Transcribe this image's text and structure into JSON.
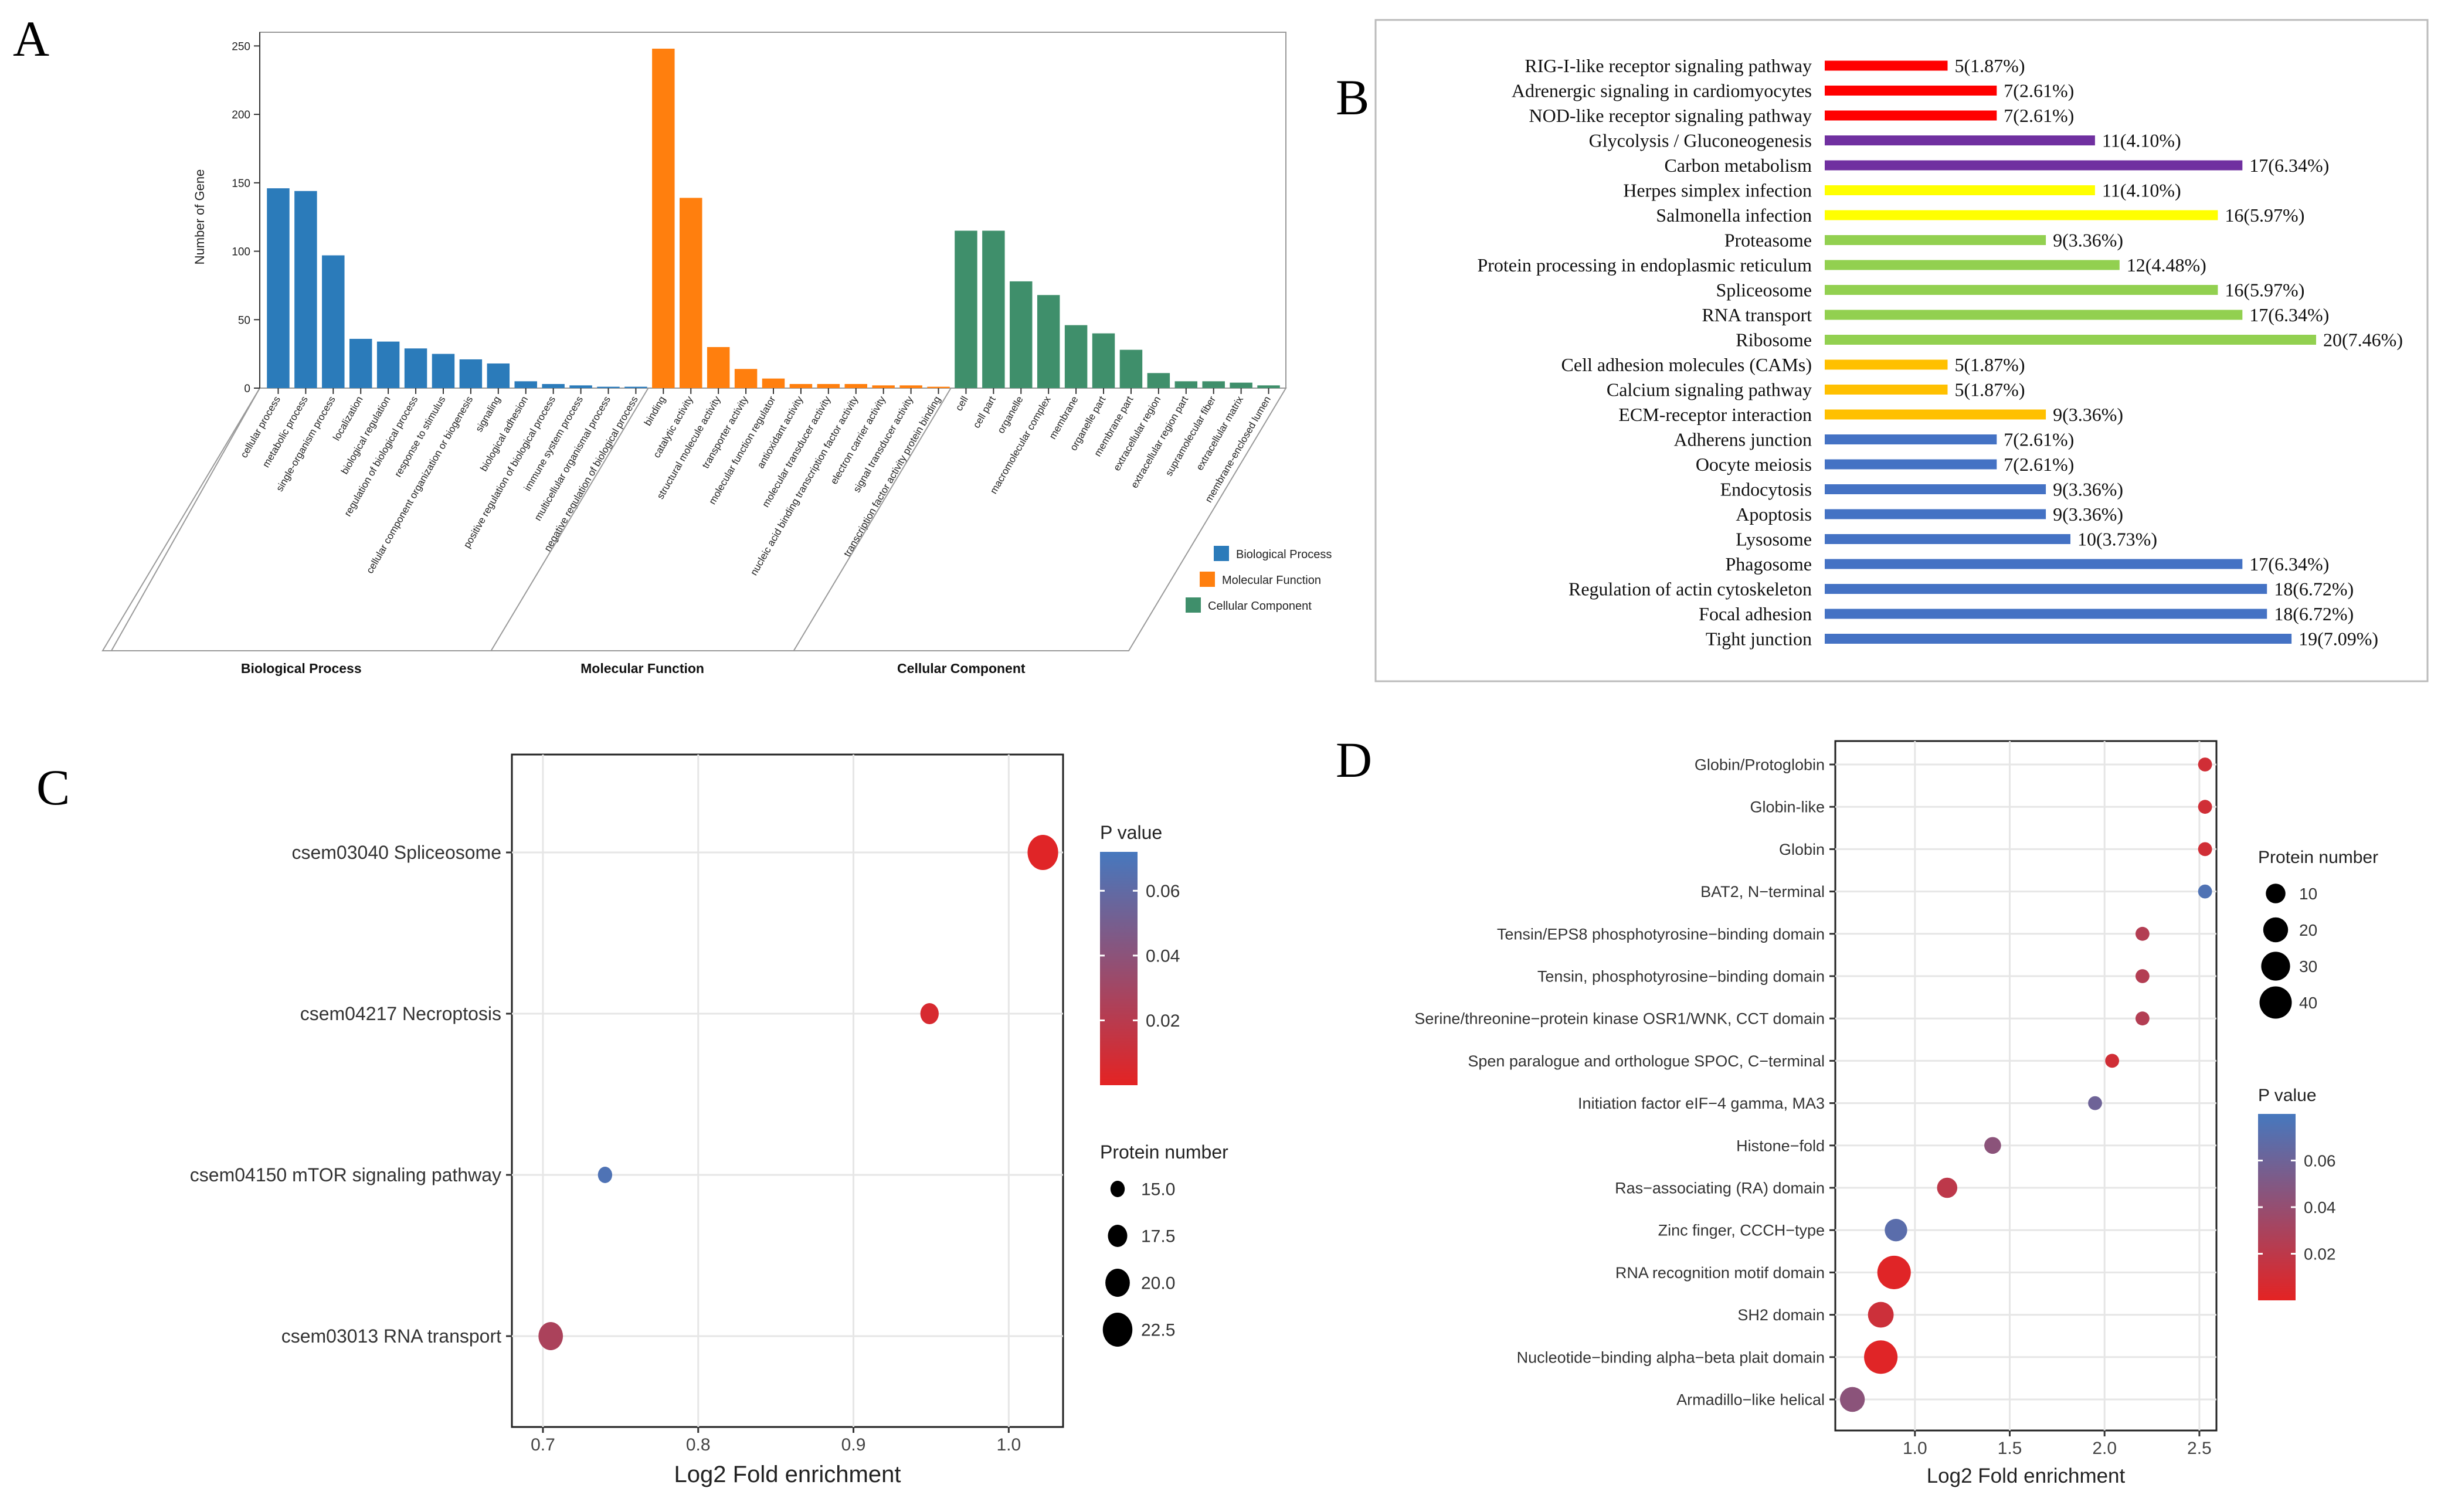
{
  "chart_data": [
    {
      "panel": "A",
      "type": "bar",
      "ylabel": "Number of Gene",
      "ylim": [
        0,
        260
      ],
      "yticks": [
        0,
        50,
        100,
        150,
        200,
        250
      ],
      "groups": [
        {
          "name": "Biological Process",
          "color": "#2b7bba",
          "legend": "Biological Process",
          "categories": [
            "cellular process",
            "metabolic process",
            "single-organism process",
            "localization",
            "biological regulation",
            "regulation of biological process",
            "response to stimulus",
            "cellular component organization or biogenesis",
            "signaling",
            "biological adhesion",
            "positive regulation of biological process",
            "immune system process",
            "multicellular organismal process",
            "negative regulation of biological process"
          ],
          "values": [
            146,
            144,
            97,
            36,
            34,
            29,
            25,
            21,
            18,
            5,
            3,
            2,
            1,
            1
          ]
        },
        {
          "name": "Molecular Function",
          "color": "#ff7f0e",
          "legend": "Molecular Function",
          "categories": [
            "binding",
            "catalytic activity",
            "structural molecule activity",
            "transporter activity",
            "molecular function regulator",
            "antioxidant activity",
            "molecular transducer activity",
            "nucleic acid binding transcription factor activity",
            "electron carrier activity",
            "signal transducer activity",
            "transcription factor activity protein binding"
          ],
          "values": [
            248,
            139,
            30,
            14,
            7,
            3,
            3,
            3,
            2,
            2,
            1
          ]
        },
        {
          "name": "Cellular Component",
          "color": "#3f8f6b",
          "legend": "Cellular Component",
          "categories": [
            "cell",
            "cell part",
            "organelle",
            "macromolecular complex",
            "membrane",
            "organelle part",
            "membrane part",
            "extracellular region",
            "extracellular region part",
            "supramolecular fiber",
            "extracellular matrix",
            "membrane-enclosed lumen"
          ],
          "values": [
            115,
            115,
            78,
            68,
            46,
            40,
            28,
            11,
            5,
            5,
            4,
            2
          ]
        }
      ]
    },
    {
      "panel": "B",
      "type": "bar",
      "orientation": "horizontal",
      "categories": [
        "RIG-I-like receptor signaling pathway",
        "Adrenergic signaling in cardiomyocytes",
        "NOD-like receptor signaling pathway",
        "Glycolysis / Gluconeogenesis",
        "Carbon metabolism",
        "Herpes simplex infection",
        "Salmonella infection",
        "Proteasome",
        "Protein processing in endoplasmic reticulum",
        "Spliceosome",
        "RNA transport",
        "Ribosome",
        "Cell adhesion molecules (CAMs)",
        "Calcium signaling pathway",
        "ECM-receptor interaction",
        "Adherens junction",
        "Oocyte meiosis",
        "Endocytosis",
        "Apoptosis",
        "Lysosome",
        "Phagosome",
        "Regulation of actin cytoskeleton",
        "Focal adhesion",
        "Tight junction"
      ],
      "values": [
        5,
        7,
        7,
        11,
        17,
        11,
        16,
        9,
        12,
        16,
        17,
        20,
        5,
        5,
        9,
        7,
        7,
        9,
        9,
        10,
        17,
        18,
        18,
        19
      ],
      "labels": [
        "5(1.87%)",
        "7(2.61%)",
        "7(2.61%)",
        "11(4.10%)",
        "17(6.34%)",
        "11(4.10%)",
        "16(5.97%)",
        "9(3.36%)",
        "12(4.48%)",
        "16(5.97%)",
        "17(6.34%)",
        "20(7.46%)",
        "5(1.87%)",
        "5(1.87%)",
        "9(3.36%)",
        "7(2.61%)",
        "7(2.61%)",
        "9(3.36%)",
        "9(3.36%)",
        "10(3.73%)",
        "17(6.34%)",
        "18(6.72%)",
        "18(6.72%)",
        "19(7.09%)"
      ],
      "colors": [
        "#ff0000",
        "#ff0000",
        "#ff0000",
        "#7030a0",
        "#7030a0",
        "#ffff00",
        "#ffff00",
        "#92d050",
        "#92d050",
        "#92d050",
        "#92d050",
        "#92d050",
        "#ffc000",
        "#ffc000",
        "#ffc000",
        "#4472c4",
        "#4472c4",
        "#4472c4",
        "#4472c4",
        "#4472c4",
        "#4472c4",
        "#4472c4",
        "#4472c4",
        "#4472c4"
      ],
      "xlim": [
        0,
        20
      ]
    },
    {
      "panel": "C",
      "type": "scatter",
      "xlabel": "Log2 Fold enrichment",
      "xlim": [
        0.68,
        1.035
      ],
      "xticks": [
        0.7,
        0.8,
        0.9,
        1.0
      ],
      "xtick_labels": [
        "0.7",
        "0.8",
        "0.9",
        "1.0"
      ],
      "categories": [
        "csem03040 Spliceosome",
        "csem04217 Necroptosis",
        "csem04150 mTOR signaling pathway",
        "csem03013 RNA transport"
      ],
      "x": [
        1.022,
        0.949,
        0.74,
        0.705
      ],
      "pvalue": [
        0.002,
        0.006,
        0.068,
        0.026
      ],
      "size": [
        23,
        17,
        15,
        20
      ],
      "color_legend": {
        "title": "P value",
        "range": [
          0,
          0.072
        ],
        "ticks": [
          0.06,
          0.04,
          0.02
        ],
        "tick_labels": [
          "0.06",
          "0.04",
          "0.02"
        ]
      },
      "size_legend": {
        "title": "Protein number",
        "values": [
          15.0,
          17.5,
          20.0,
          22.5
        ],
        "labels": [
          "15.0",
          "17.5",
          "20.0",
          "22.5"
        ]
      }
    },
    {
      "panel": "D",
      "type": "scatter",
      "xlabel": "Log2 Fold enrichment",
      "xlim": [
        0.58,
        2.59
      ],
      "xticks": [
        1.0,
        1.5,
        2.0,
        2.5
      ],
      "xtick_labels": [
        "1.0",
        "1.5",
        "2.0",
        "2.5"
      ],
      "categories": [
        "Globin/Protoglobin",
        "Globin-like",
        "Globin",
        "BAT2, N−terminal",
        "Tensin/EPS8 phosphotyrosine−binding domain",
        "Tensin, phosphotyrosine−binding domain",
        "Serine/threonine−protein kinase OSR1/WNK, CCT domain",
        "Spen paralogue and orthologue SPOC, C−terminal",
        "Initiation factor eIF−4 gamma, MA3",
        "Histone−fold",
        "Ras−associating (RA) domain",
        "Zinc finger, CCCH−type",
        "RNA recognition motif domain",
        "SH2 domain",
        "Nucleotide−binding alpha−beta plait domain",
        "Armadillo−like helical"
      ],
      "x": [
        2.53,
        2.53,
        2.53,
        2.53,
        2.2,
        2.2,
        2.2,
        2.04,
        1.95,
        1.41,
        1.17,
        0.9,
        0.89,
        0.82,
        0.82,
        0.67
      ],
      "pvalue": [
        0.01,
        0.01,
        0.01,
        0.075,
        0.025,
        0.025,
        0.025,
        0.01,
        0.06,
        0.045,
        0.02,
        0.07,
        0.002,
        0.012,
        0.002,
        0.045
      ],
      "size": [
        3,
        3,
        3,
        3,
        3,
        3,
        3,
        3,
        3,
        6,
        11,
        15,
        44,
        22,
        44,
        20
      ],
      "color_legend": {
        "title": "P value",
        "range": [
          0,
          0.08
        ],
        "ticks": [
          0.06,
          0.04,
          0.02
        ],
        "tick_labels": [
          "0.06",
          "0.04",
          "0.02"
        ]
      },
      "size_legend": {
        "title": "Protein number",
        "values": [
          10,
          20,
          30,
          40
        ],
        "labels": [
          "10",
          "20",
          "30",
          "40"
        ]
      }
    }
  ],
  "panel_labels": [
    "A",
    "B",
    "C",
    "D"
  ]
}
